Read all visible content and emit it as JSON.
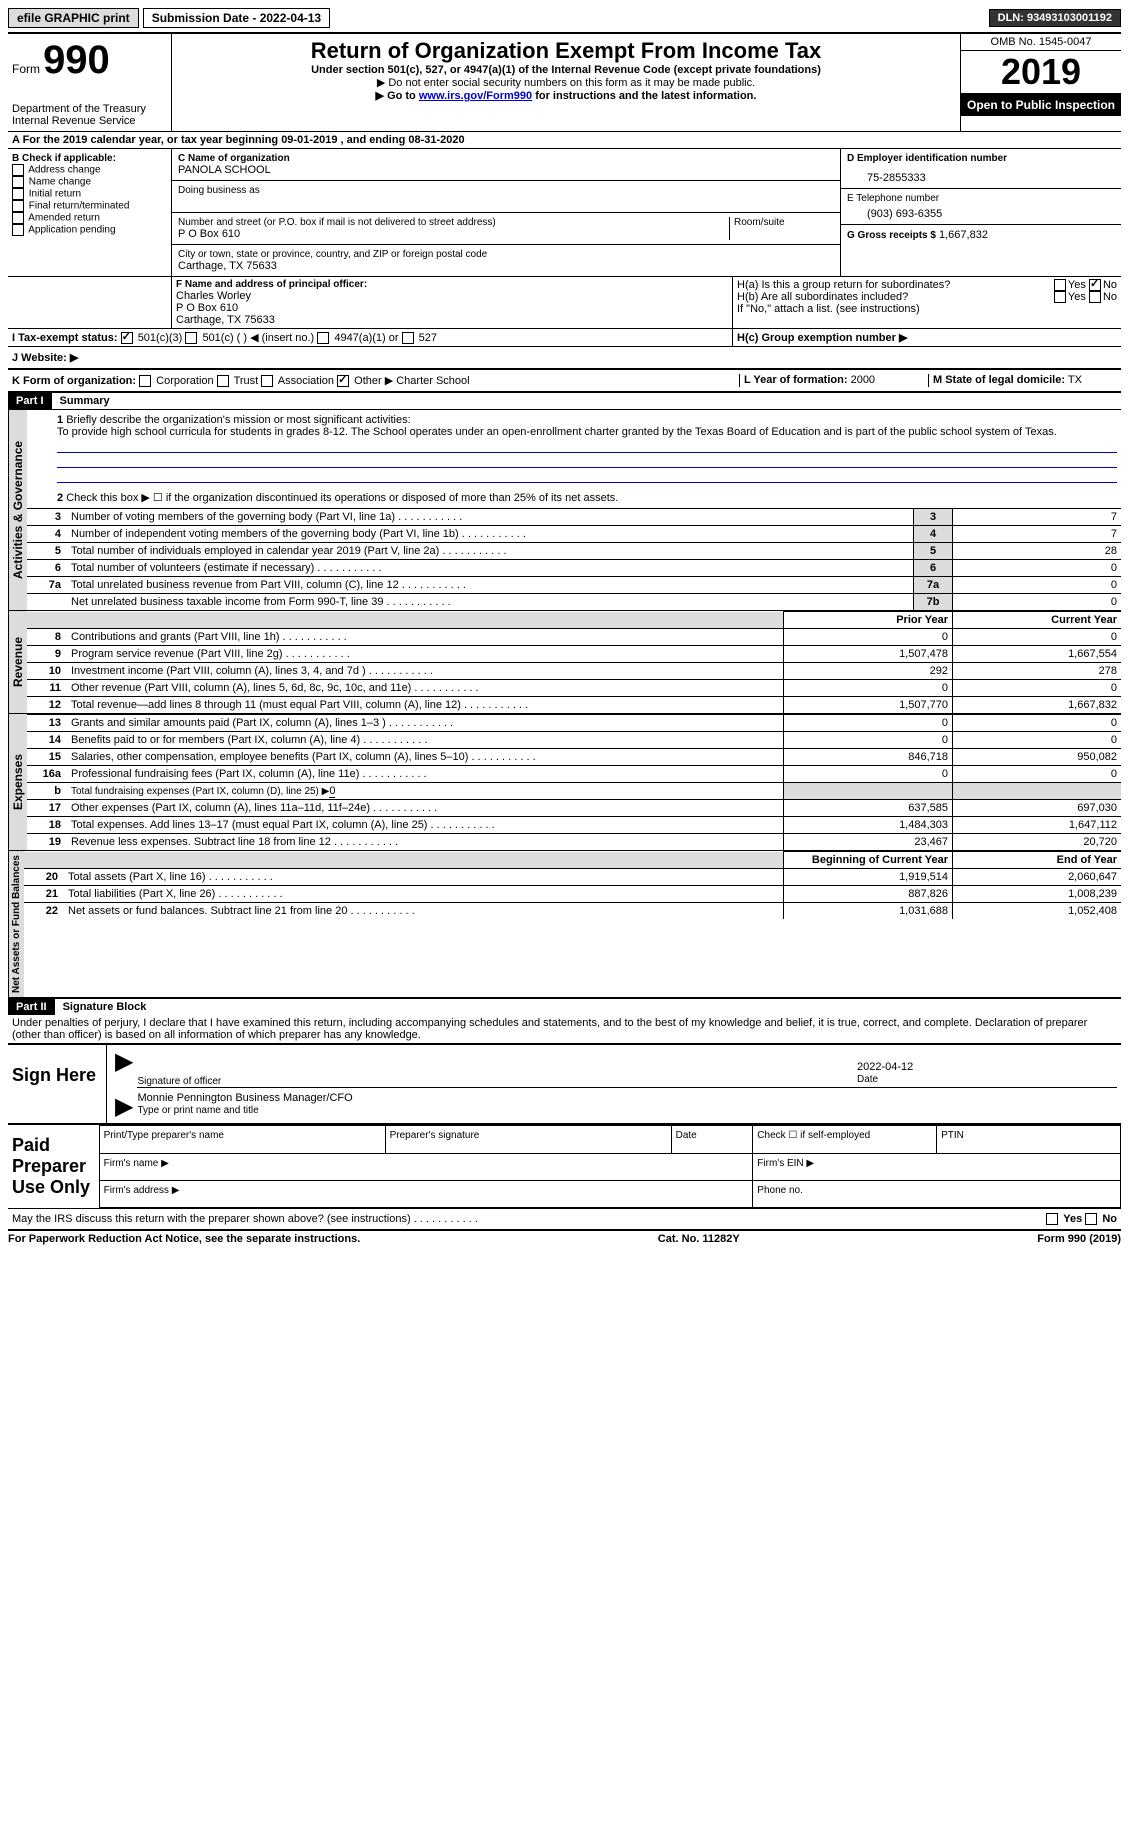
{
  "topbar": {
    "efile": "efile GRAPHIC print",
    "submission_label": "Submission Date - 2022-04-13",
    "dln": "DLN: 93493103001192"
  },
  "header": {
    "form_label": "Form",
    "form_number": "990",
    "dept": "Department of the Treasury Internal Revenue Service",
    "title": "Return of Organization Exempt From Income Tax",
    "subtitle": "Under section 501(c), 527, or 4947(a)(1) of the Internal Revenue Code (except private foundations)",
    "note1": "▶ Do not enter social security numbers on this form as it may be made public.",
    "note2_pre": "▶ Go to ",
    "note2_link": "www.irs.gov/Form990",
    "note2_post": " for instructions and the latest information.",
    "omb": "OMB No. 1545-0047",
    "year": "2019",
    "open": "Open to Public Inspection"
  },
  "line_a": "A For the 2019 calendar year, or tax year beginning 09-01-2019   , and ending 08-31-2020",
  "section_b": {
    "label": "B Check if applicable:",
    "checks": [
      "Address change",
      "Name change",
      "Initial return",
      "Final return/terminated",
      "Amended return",
      "Application pending"
    ]
  },
  "section_c": {
    "name_label": "C Name of organization",
    "name": "PANOLA SCHOOL",
    "dba_label": "Doing business as",
    "addr_label": "Number and street (or P.O. box if mail is not delivered to street address)",
    "room_label": "Room/suite",
    "addr": "P O Box 610",
    "city_label": "City or town, state or province, country, and ZIP or foreign postal code",
    "city": "Carthage, TX  75633"
  },
  "section_d": {
    "label": "D Employer identification number",
    "value": "75-2855333"
  },
  "section_e": {
    "label": "E Telephone number",
    "value": "(903) 693-6355"
  },
  "section_g": {
    "label": "G Gross receipts $",
    "value": "1,667,832"
  },
  "section_f": {
    "label": "F Name and address of principal officer:",
    "name": "Charles Worley",
    "addr1": "P O Box 610",
    "addr2": "Carthage, TX  75633"
  },
  "section_h": {
    "ha_label": "H(a)  Is this a group return for subordinates?",
    "hb_label": "H(b)  Are all subordinates included?",
    "h_note": "If \"No,\" attach a list. (see instructions)",
    "hc_label": "H(c)  Group exemption number ▶",
    "yes": "Yes",
    "no": "No"
  },
  "section_i": {
    "label": "I   Tax-exempt status:",
    "opt1": "501(c)(3)",
    "opt2": "501(c) (  ) ◀ (insert no.)",
    "opt3": "4947(a)(1) or",
    "opt4": "527"
  },
  "section_j": {
    "label": "J   Website: ▶"
  },
  "section_k": {
    "label": "K Form of organization:",
    "opts": [
      "Corporation",
      "Trust",
      "Association",
      "Other ▶"
    ],
    "other_val": "Charter School"
  },
  "section_l": {
    "label": "L Year of formation:",
    "value": "2000"
  },
  "section_m": {
    "label": "M State of legal domicile:",
    "value": "TX"
  },
  "part1": {
    "header": "Part I",
    "title": "Summary",
    "line1_label": "Briefly describe the organization's mission or most significant activities:",
    "line1_text": "To provide high school curricula for students in grades 8-12. The School operates under an open-enrollment charter granted by the Texas Board of Education and is part of the public school system of Texas.",
    "line2": "Check this box ▶ ☐  if the organization discontinued its operations or disposed of more than 25% of its net assets."
  },
  "governance_rows": [
    {
      "num": "3",
      "label": "Number of voting members of the governing body (Part VI, line 1a)",
      "box": "3",
      "val": "7"
    },
    {
      "num": "4",
      "label": "Number of independent voting members of the governing body (Part VI, line 1b)",
      "box": "4",
      "val": "7"
    },
    {
      "num": "5",
      "label": "Total number of individuals employed in calendar year 2019 (Part V, line 2a)",
      "box": "5",
      "val": "28"
    },
    {
      "num": "6",
      "label": "Total number of volunteers (estimate if necessary)",
      "box": "6",
      "val": "0"
    },
    {
      "num": "7a",
      "label": "Total unrelated business revenue from Part VIII, column (C), line 12",
      "box": "7a",
      "val": "0"
    },
    {
      "num": "",
      "label": "Net unrelated business taxable income from Form 990-T, line 39",
      "box": "7b",
      "val": "0"
    }
  ],
  "col_headers": {
    "prior": "Prior Year",
    "current": "Current Year",
    "boy": "Beginning of Current Year",
    "eoy": "End of Year"
  },
  "revenue_rows": [
    {
      "num": "8",
      "label": "Contributions and grants (Part VIII, line 1h)",
      "prior": "0",
      "curr": "0"
    },
    {
      "num": "9",
      "label": "Program service revenue (Part VIII, line 2g)",
      "prior": "1,507,478",
      "curr": "1,667,554"
    },
    {
      "num": "10",
      "label": "Investment income (Part VIII, column (A), lines 3, 4, and 7d )",
      "prior": "292",
      "curr": "278"
    },
    {
      "num": "11",
      "label": "Other revenue (Part VIII, column (A), lines 5, 6d, 8c, 9c, 10c, and 11e)",
      "prior": "0",
      "curr": "0"
    },
    {
      "num": "12",
      "label": "Total revenue—add lines 8 through 11 (must equal Part VIII, column (A), line 12)",
      "prior": "1,507,770",
      "curr": "1,667,832"
    }
  ],
  "expense_rows": [
    {
      "num": "13",
      "label": "Grants and similar amounts paid (Part IX, column (A), lines 1–3 )",
      "prior": "0",
      "curr": "0"
    },
    {
      "num": "14",
      "label": "Benefits paid to or for members (Part IX, column (A), line 4)",
      "prior": "0",
      "curr": "0"
    },
    {
      "num": "15",
      "label": "Salaries, other compensation, employee benefits (Part IX, column (A), lines 5–10)",
      "prior": "846,718",
      "curr": "950,082"
    },
    {
      "num": "16a",
      "label": "Professional fundraising fees (Part IX, column (A), line 11e)",
      "prior": "0",
      "curr": "0"
    }
  ],
  "line16b": {
    "num": "b",
    "label": "Total fundraising expenses (Part IX, column (D), line 25) ▶",
    "val": "0"
  },
  "expense_rows2": [
    {
      "num": "17",
      "label": "Other expenses (Part IX, column (A), lines 11a–11d, 11f–24e)",
      "prior": "637,585",
      "curr": "697,030"
    },
    {
      "num": "18",
      "label": "Total expenses. Add lines 13–17 (must equal Part IX, column (A), line 25)",
      "prior": "1,484,303",
      "curr": "1,647,112"
    },
    {
      "num": "19",
      "label": "Revenue less expenses. Subtract line 18 from line 12",
      "prior": "23,467",
      "curr": "20,720"
    }
  ],
  "netassets_rows": [
    {
      "num": "20",
      "label": "Total assets (Part X, line 16)",
      "prior": "1,919,514",
      "curr": "2,060,647"
    },
    {
      "num": "21",
      "label": "Total liabilities (Part X, line 26)",
      "prior": "887,826",
      "curr": "1,008,239"
    },
    {
      "num": "22",
      "label": "Net assets or fund balances. Subtract line 21 from line 20",
      "prior": "1,031,688",
      "curr": "1,052,408"
    }
  ],
  "vlabels": {
    "gov": "Activities & Governance",
    "rev": "Revenue",
    "exp": "Expenses",
    "net": "Net Assets or Fund Balances"
  },
  "part2": {
    "header": "Part II",
    "title": "Signature Block",
    "declaration": "Under penalties of perjury, I declare that I have examined this return, including accompanying schedules and statements, and to the best of my knowledge and belief, it is true, correct, and complete. Declaration of preparer (other than officer) is based on all information of which preparer has any knowledge."
  },
  "sign": {
    "label": "Sign Here",
    "sig_officer": "Signature of officer",
    "date_label": "Date",
    "date_val": "2022-04-12",
    "name_title": "Monnie Pennington Business Manager/CFO",
    "type_label": "Type or print name and title"
  },
  "preparer": {
    "label": "Paid Preparer Use Only",
    "h1": "Print/Type preparer's name",
    "h2": "Preparer's signature",
    "h3": "Date",
    "h4_pre": "Check ☐ if self-employed",
    "h5": "PTIN",
    "firm_name": "Firm's name   ▶",
    "firm_ein": "Firm's EIN ▶",
    "firm_addr": "Firm's address ▶",
    "phone": "Phone no."
  },
  "discuss": {
    "label": "May the IRS discuss this return with the preparer shown above? (see instructions)",
    "yes": "Yes",
    "no": "No"
  },
  "footer": {
    "paperwork": "For Paperwork Reduction Act Notice, see the separate instructions.",
    "cat": "Cat. No. 11282Y",
    "form": "Form 990 (2019)"
  }
}
